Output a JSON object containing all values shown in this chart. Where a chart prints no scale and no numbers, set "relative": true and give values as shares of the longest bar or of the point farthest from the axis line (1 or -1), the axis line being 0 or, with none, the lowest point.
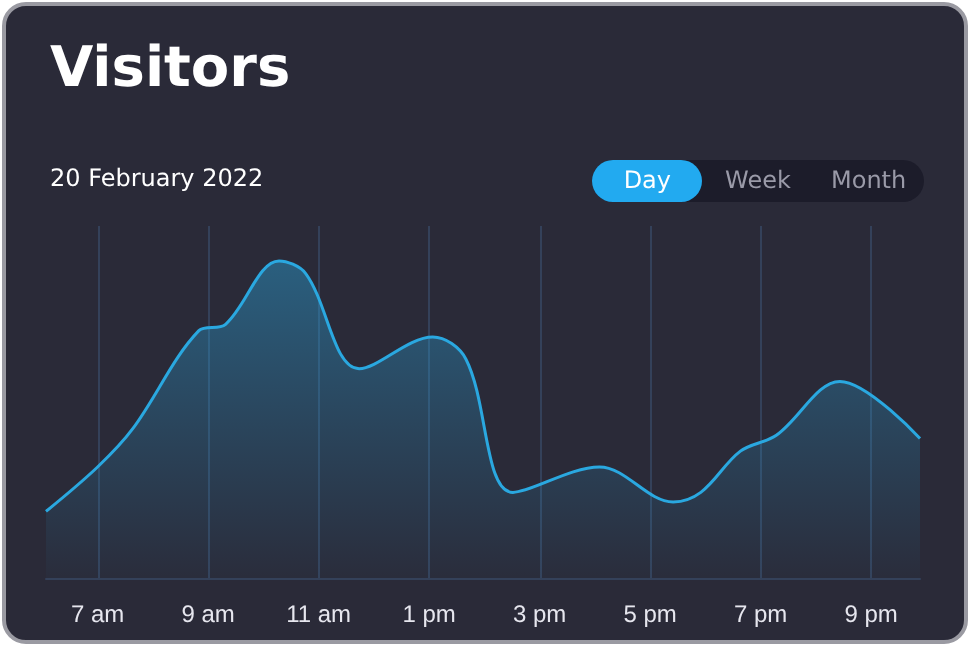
{
  "chart_data": {
    "type": "area",
    "title": "Visitors",
    "subtitle": "20 February 2022",
    "annotations": [
      "Day",
      "Week",
      "Month"
    ],
    "relative": true,
    "grid": "x",
    "marker": "none",
    "line_style": "solid",
    "x": [
      "2022-02-20T06:04",
      "2022-02-20T07:00",
      "2022-02-20T07:38",
      "2022-02-20T08:50",
      "2022-02-20T09:19",
      "2022-02-20T10:17",
      "2022-02-20T10:46",
      "2022-02-20T11:44",
      "2022-02-20T13:04",
      "2022-02-20T13:40",
      "2022-02-20T14:31",
      "2022-02-20T16:05",
      "2022-02-20T17:25",
      "2022-02-20T17:55",
      "2022-02-20T18:38",
      "2022-02-20T19:17",
      "2022-02-20T20:26",
      "2022-02-20T21:53"
    ],
    "xlim": [
      "2022-02-20T06:04",
      "2022-02-20T21:53"
    ],
    "xticks": [
      {
        "value": "2022-02-20T07:00",
        "label": "7 am"
      },
      {
        "value": "2022-02-20T09:00",
        "label": "9 am"
      },
      {
        "value": "2022-02-20T11:00",
        "label": "11 am"
      },
      {
        "value": "2022-02-20T13:00",
        "label": "1 pm"
      },
      {
        "value": "2022-02-20T15:00",
        "label": "3 pm"
      },
      {
        "value": "2022-02-20T17:00",
        "label": "5 pm"
      },
      {
        "value": "2022-02-20T19:00",
        "label": "7 pm"
      },
      {
        "value": "2022-02-20T21:00",
        "label": "9 pm"
      }
    ],
    "series": [
      {
        "color": "#2aa8e0",
        "values": [
          0.21,
          0.35,
          0.47,
          0.78,
          0.8,
          1.0,
          0.96,
          0.66,
          0.76,
          0.69,
          0.27,
          0.35,
          0.24,
          0.27,
          0.4,
          0.45,
          0.62,
          0.44
        ]
      }
    ]
  }
}
